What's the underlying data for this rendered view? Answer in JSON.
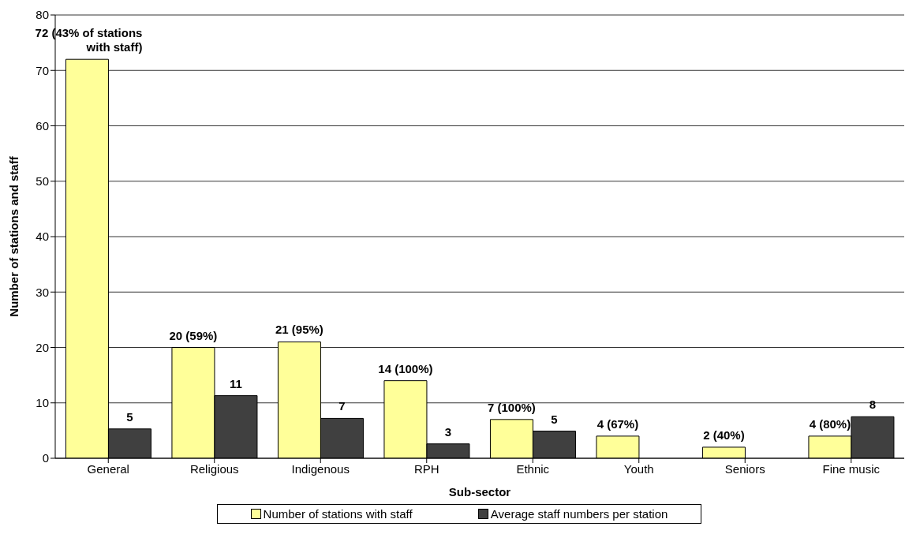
{
  "chart_data": {
    "type": "bar",
    "xlabel": "Sub-sector",
    "ylabel": "Number of stations and staff",
    "categories": [
      "General",
      "Religious",
      "Indigenous",
      "RPH",
      "Ethnic",
      "Youth",
      "Seniors",
      "Fine music"
    ],
    "series": [
      {
        "name": "Number of stations with staff",
        "color": "#ffff99",
        "values": [
          72,
          20,
          21,
          14,
          7,
          4,
          2,
          4
        ],
        "value_labels": [
          "72 (43% of stations with staff)",
          "20 (59%)",
          "21 (95%)",
          "14 (100%)",
          "7 (100%)",
          "4 (67%)",
          "2 (40%)",
          "4 (80%)"
        ]
      },
      {
        "name": "Average staff numbers per station",
        "color": "#404040",
        "values": [
          5.3,
          11.3,
          7.2,
          2.6,
          4.9,
          null,
          null,
          7.5
        ],
        "value_labels": [
          "5",
          "11",
          "7",
          "3",
          "5",
          null,
          null,
          "8"
        ]
      }
    ],
    "ylim": [
      0,
      80
    ],
    "yticks": [
      0,
      10,
      20,
      30,
      40,
      50,
      60,
      70,
      80
    ],
    "grid": "y",
    "legend": "bottom"
  }
}
